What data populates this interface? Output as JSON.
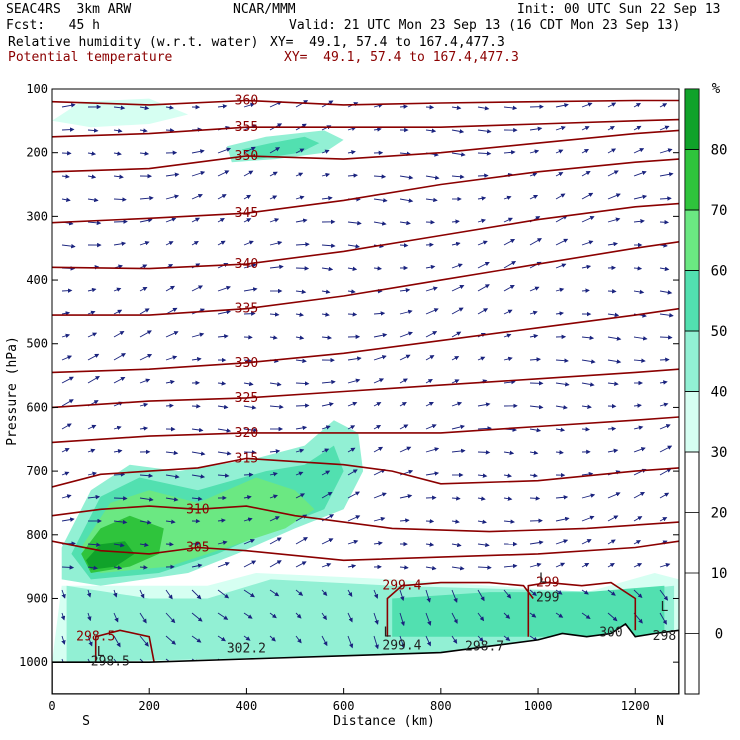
{
  "header": {
    "model": "SEAC4RS  3km ARW",
    "center": "NCAR/MMM",
    "init": "Init: 00 UTC Sun 22 Sep 13",
    "fcst": "Fcst:   45 h",
    "valid": "Valid: 21 UTC Mon 23 Sep 13 (16 CDT Mon 23 Sep 13)",
    "field1": "Relative humidity (w.r.t. water)",
    "xy1": "XY=  49.1, 57.4 to 167.4,477.3",
    "field2": "Potential temperature",
    "xy2": "XY=  49.1, 57.4 to 167.4,477.3"
  },
  "colors": {
    "theta": "#8b0000",
    "arrows": "#1a237e",
    "rh_30": "#d6fff2",
    "rh_40": "#92f0d4",
    "rh_50": "#52e0b0",
    "rh_60": "#6be882",
    "rh_70": "#2fc43c",
    "rh_80": "#10a22a"
  },
  "chart_data": {
    "type": "heatmap",
    "title": "Relative humidity (w.r.t. water) and Potential temperature cross section",
    "xlabel": "Distance (km)",
    "ylabel": "Pressure (hPa)",
    "xlim": [
      0,
      1290
    ],
    "ylim": [
      1050,
      100
    ],
    "x_ticks": [
      0,
      200,
      400,
      600,
      800,
      1000,
      1200
    ],
    "y_ticks": [
      100,
      200,
      300,
      400,
      500,
      600,
      700,
      800,
      900,
      1000
    ],
    "x_end_labels": {
      "left": "S",
      "right": "N"
    },
    "colorbar": {
      "unit": "%",
      "ticks": [
        0,
        10,
        20,
        30,
        40,
        50,
        60,
        70,
        80
      ],
      "bins": [
        {
          "lower": 30,
          "upper": 40,
          "color": "#d6fff2"
        },
        {
          "lower": 40,
          "upper": 50,
          "color": "#92f0d4"
        },
        {
          "lower": 50,
          "upper": 60,
          "color": "#52e0b0"
        },
        {
          "lower": 60,
          "upper": 70,
          "color": "#6be882"
        },
        {
          "lower": 70,
          "upper": 80,
          "color": "#2fc43c"
        },
        {
          "lower": 80,
          "upper": 90,
          "color": "#10a22a"
        }
      ]
    },
    "rh_regions": [
      {
        "level": 30,
        "points": [
          [
            20,
            880
          ],
          [
            0,
            1000
          ],
          [
            1290,
            1000
          ],
          [
            1290,
            870
          ],
          [
            1240,
            860
          ],
          [
            1100,
            890
          ],
          [
            700,
            870
          ],
          [
            420,
            860
          ],
          [
            320,
            880
          ],
          [
            260,
            880
          ],
          [
            60,
            880
          ]
        ]
      },
      {
        "level": 40,
        "points": [
          [
            30,
            880
          ],
          [
            30,
            1000
          ],
          [
            1280,
            980
          ],
          [
            1280,
            880
          ],
          [
            1150,
            890
          ],
          [
            700,
            880
          ],
          [
            450,
            870
          ],
          [
            320,
            900
          ],
          [
            200,
            900
          ]
        ]
      },
      {
        "level": 40,
        "points": [
          [
            20,
            820
          ],
          [
            80,
            730
          ],
          [
            160,
            690
          ],
          [
            260,
            700
          ],
          [
            420,
            680
          ],
          [
            520,
            660
          ],
          [
            580,
            620
          ],
          [
            630,
            640
          ],
          [
            640,
            700
          ],
          [
            600,
            760
          ],
          [
            500,
            790
          ],
          [
            380,
            830
          ],
          [
            280,
            860
          ],
          [
            100,
            880
          ],
          [
            20,
            870
          ]
        ]
      },
      {
        "level": 50,
        "points": [
          [
            40,
            830
          ],
          [
            100,
            740
          ],
          [
            180,
            710
          ],
          [
            300,
            730
          ],
          [
            440,
            700
          ],
          [
            520,
            690
          ],
          [
            580,
            660
          ],
          [
            600,
            700
          ],
          [
            560,
            760
          ],
          [
            460,
            790
          ],
          [
            340,
            830
          ],
          [
            220,
            860
          ],
          [
            80,
            870
          ]
        ]
      },
      {
        "level": 50,
        "points": [
          [
            700,
            900
          ],
          [
            900,
            890
          ],
          [
            1100,
            890
          ],
          [
            1260,
            880
          ],
          [
            1260,
            960
          ],
          [
            1100,
            960
          ],
          [
            900,
            960
          ],
          [
            700,
            960
          ]
        ]
      },
      {
        "level": 60,
        "points": [
          [
            60,
            820
          ],
          [
            120,
            750
          ],
          [
            200,
            730
          ],
          [
            300,
            750
          ],
          [
            420,
            710
          ],
          [
            500,
            730
          ],
          [
            540,
            760
          ],
          [
            480,
            790
          ],
          [
            360,
            820
          ],
          [
            240,
            850
          ],
          [
            100,
            860
          ]
        ]
      },
      {
        "level": 70,
        "points": [
          [
            60,
            830
          ],
          [
            100,
            790
          ],
          [
            160,
            770
          ],
          [
            230,
            790
          ],
          [
            220,
            830
          ],
          [
            160,
            850
          ],
          [
            80,
            860
          ]
        ]
      },
      {
        "level": 80,
        "points": [
          [
            70,
            840
          ],
          [
            100,
            815
          ],
          [
            150,
            810
          ],
          [
            170,
            830
          ],
          [
            130,
            850
          ],
          [
            80,
            855
          ]
        ]
      },
      {
        "level": 40,
        "points": [
          [
            360,
            190
          ],
          [
            440,
            175
          ],
          [
            560,
            165
          ],
          [
            600,
            180
          ],
          [
            560,
            200
          ],
          [
            460,
            210
          ],
          [
            370,
            215
          ]
        ]
      },
      {
        "level": 50,
        "points": [
          [
            390,
            195
          ],
          [
            450,
            185
          ],
          [
            520,
            175
          ],
          [
            550,
            185
          ],
          [
            510,
            200
          ],
          [
            420,
            210
          ]
        ]
      },
      {
        "level": 30,
        "points": [
          [
            0,
            150
          ],
          [
            60,
            120
          ],
          [
            200,
            115
          ],
          [
            280,
            140
          ],
          [
            200,
            155
          ],
          [
            80,
            160
          ]
        ]
      }
    ],
    "series": [
      {
        "name": "298.5",
        "label": "298.5",
        "points": [
          [
            90,
            1000
          ],
          [
            90,
            960
          ],
          [
            140,
            950
          ],
          [
            200,
            960
          ],
          [
            210,
            1000
          ]
        ]
      },
      {
        "name": "299.4",
        "label": "299.4",
        "points": [
          [
            690,
            960
          ],
          [
            690,
            900
          ],
          [
            720,
            880
          ],
          [
            800,
            875
          ],
          [
            900,
            875
          ],
          [
            970,
            880
          ],
          [
            990,
            900
          ]
        ]
      },
      {
        "name": "299",
        "label": "299",
        "points": [
          [
            980,
            960
          ],
          [
            980,
            880
          ],
          [
            1020,
            875
          ],
          [
            1090,
            880
          ],
          [
            1150,
            875
          ],
          [
            1200,
            900
          ],
          [
            1200,
            950
          ]
        ]
      },
      {
        "name": "305",
        "label": "305",
        "points": [
          [
            0,
            810
          ],
          [
            100,
            825
          ],
          [
            200,
            830
          ],
          [
            300,
            820
          ],
          [
            400,
            825
          ],
          [
            600,
            840
          ],
          [
            800,
            835
          ],
          [
            1000,
            830
          ],
          [
            1200,
            820
          ],
          [
            1290,
            810
          ]
        ]
      },
      {
        "name": "310",
        "label": "310",
        "points": [
          [
            0,
            770
          ],
          [
            100,
            760
          ],
          [
            200,
            755
          ],
          [
            300,
            760
          ],
          [
            400,
            755
          ],
          [
            500,
            770
          ],
          [
            700,
            790
          ],
          [
            900,
            795
          ],
          [
            1100,
            790
          ],
          [
            1290,
            780
          ]
        ]
      },
      {
        "name": "315",
        "label": "315",
        "points": [
          [
            0,
            725
          ],
          [
            100,
            705
          ],
          [
            200,
            700
          ],
          [
            300,
            695
          ],
          [
            400,
            680
          ],
          [
            500,
            685
          ],
          [
            600,
            690
          ],
          [
            700,
            700
          ],
          [
            800,
            720
          ],
          [
            1000,
            715
          ],
          [
            1200,
            700
          ],
          [
            1290,
            695
          ]
        ]
      },
      {
        "name": "320",
        "label": "320",
        "points": [
          [
            0,
            655
          ],
          [
            200,
            645
          ],
          [
            400,
            640
          ],
          [
            600,
            640
          ],
          [
            800,
            640
          ],
          [
            1000,
            630
          ],
          [
            1200,
            620
          ],
          [
            1290,
            615
          ]
        ]
      },
      {
        "name": "325",
        "label": "325",
        "points": [
          [
            0,
            600
          ],
          [
            200,
            590
          ],
          [
            400,
            585
          ],
          [
            600,
            575
          ],
          [
            800,
            565
          ],
          [
            1000,
            555
          ],
          [
            1200,
            545
          ],
          [
            1290,
            540
          ]
        ]
      },
      {
        "name": "330",
        "label": "330",
        "points": [
          [
            0,
            545
          ],
          [
            200,
            540
          ],
          [
            400,
            530
          ],
          [
            600,
            515
          ],
          [
            800,
            495
          ],
          [
            1000,
            475
          ],
          [
            1200,
            455
          ],
          [
            1290,
            445
          ]
        ]
      },
      {
        "name": "335",
        "label": "335",
        "points": [
          [
            0,
            455
          ],
          [
            200,
            455
          ],
          [
            400,
            445
          ],
          [
            600,
            425
          ],
          [
            800,
            400
          ],
          [
            1000,
            375
          ],
          [
            1200,
            350
          ],
          [
            1290,
            340
          ]
        ]
      },
      {
        "name": "340",
        "label": "340",
        "points": [
          [
            0,
            380
          ],
          [
            200,
            382
          ],
          [
            400,
            375
          ],
          [
            600,
            355
          ],
          [
            800,
            330
          ],
          [
            1000,
            305
          ],
          [
            1200,
            285
          ],
          [
            1290,
            280
          ]
        ]
      },
      {
        "name": "345",
        "label": "345",
        "points": [
          [
            0,
            310
          ],
          [
            200,
            303
          ],
          [
            400,
            295
          ],
          [
            600,
            275
          ],
          [
            800,
            250
          ],
          [
            1000,
            230
          ],
          [
            1200,
            215
          ],
          [
            1290,
            210
          ]
        ]
      },
      {
        "name": "350",
        "label": "350",
        "points": [
          [
            0,
            230
          ],
          [
            200,
            225
          ],
          [
            400,
            205
          ],
          [
            600,
            210
          ],
          [
            800,
            200
          ],
          [
            1000,
            185
          ],
          [
            1200,
            170
          ],
          [
            1290,
            165
          ]
        ]
      },
      {
        "name": "355",
        "label": "355",
        "points": [
          [
            0,
            175
          ],
          [
            200,
            170
          ],
          [
            400,
            160
          ],
          [
            600,
            160
          ],
          [
            800,
            160
          ],
          [
            1000,
            155
          ],
          [
            1200,
            150
          ],
          [
            1290,
            148
          ]
        ]
      },
      {
        "name": "360",
        "label": "360",
        "points": [
          [
            0,
            120
          ],
          [
            200,
            125
          ],
          [
            400,
            118
          ],
          [
            600,
            125
          ],
          [
            800,
            122
          ],
          [
            1000,
            120
          ],
          [
            1200,
            118
          ],
          [
            1290,
            118
          ]
        ]
      }
    ],
    "terrain": [
      [
        0,
        1000
      ],
      [
        200,
        1000
      ],
      [
        400,
        995
      ],
      [
        600,
        990
      ],
      [
        800,
        985
      ],
      [
        900,
        975
      ],
      [
        1000,
        965
      ],
      [
        1050,
        955
      ],
      [
        1100,
        960
      ],
      [
        1150,
        955
      ],
      [
        1180,
        940
      ],
      [
        1200,
        960
      ],
      [
        1240,
        955
      ],
      [
        1290,
        950
      ]
    ],
    "annotations": [
      {
        "text": "L",
        "x": 100,
        "y": 990
      },
      {
        "text": "298.5",
        "x": 120,
        "y": 1005
      },
      {
        "text": "302.2",
        "x": 400,
        "y": 985
      },
      {
        "text": "L",
        "x": 690,
        "y": 960
      },
      {
        "text": "299.4",
        "x": 720,
        "y": 980
      },
      {
        "text": "298.7",
        "x": 890,
        "y": 982
      },
      {
        "text": "L",
        "x": 1010,
        "y": 875
      },
      {
        "text": "299",
        "x": 1020,
        "y": 905
      },
      {
        "text": "300",
        "x": 1150,
        "y": 960
      },
      {
        "text": "L",
        "x": 1260,
        "y": 920
      },
      {
        "text": "298",
        "x": 1260,
        "y": 965
      }
    ]
  }
}
